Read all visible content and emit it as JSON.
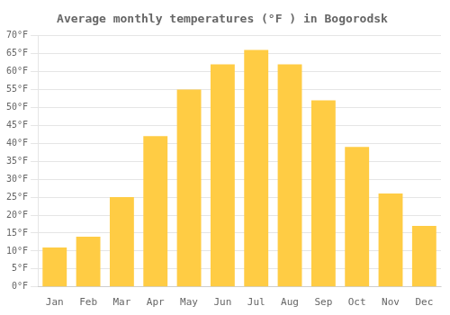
{
  "chart_data": {
    "type": "bar",
    "title": "Average monthly temperatures (°F ) in Bogorodsk",
    "categories": [
      "Jan",
      "Feb",
      "Mar",
      "Apr",
      "May",
      "Jun",
      "Jul",
      "Aug",
      "Sep",
      "Oct",
      "Nov",
      "Dec"
    ],
    "values": [
      11,
      14,
      25,
      42,
      55,
      62,
      66,
      62,
      52,
      39,
      26,
      17
    ],
    "color": "#FFCC44",
    "ylim": [
      0,
      70
    ],
    "yticks": [
      {
        "value": 0,
        "label": "0°F"
      },
      {
        "value": 5,
        "label": "5°F"
      },
      {
        "value": 10,
        "label": "10°F"
      },
      {
        "value": 15,
        "label": "15°F"
      },
      {
        "value": 20,
        "label": "20°F"
      },
      {
        "value": 25,
        "label": "25°F"
      },
      {
        "value": 30,
        "label": "30°F"
      },
      {
        "value": 35,
        "label": "35°F"
      },
      {
        "value": 40,
        "label": "40°F"
      },
      {
        "value": 45,
        "label": "45°F"
      },
      {
        "value": 50,
        "label": "50°F"
      },
      {
        "value": 55,
        "label": "55°F"
      },
      {
        "value": 60,
        "label": "60°F"
      },
      {
        "value": 65,
        "label": "65°F"
      },
      {
        "value": 70,
        "label": "70°F"
      }
    ],
    "grid": true
  }
}
